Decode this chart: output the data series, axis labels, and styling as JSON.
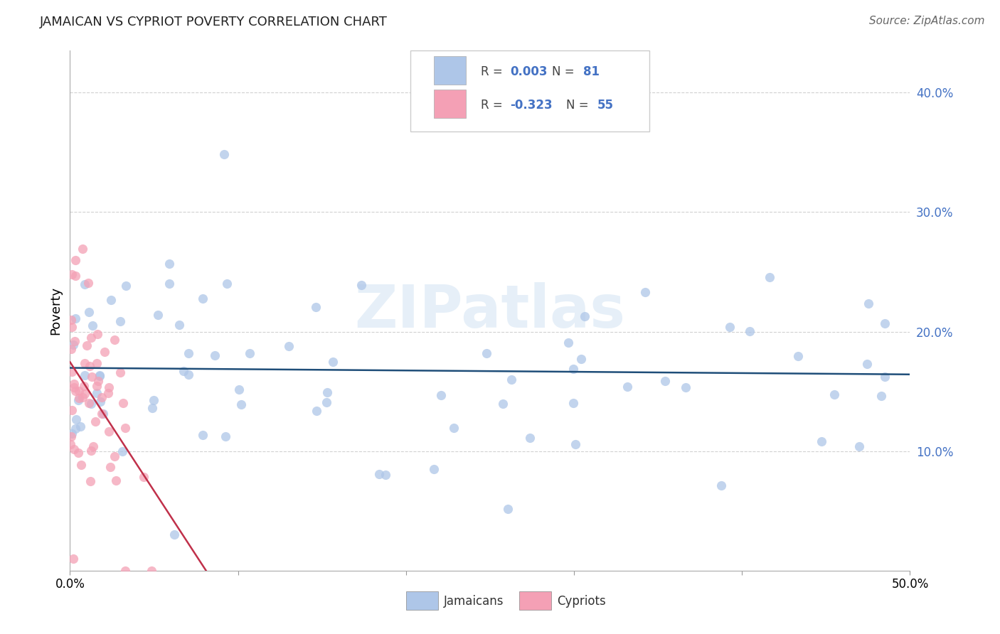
{
  "title": "JAMAICAN VS CYPRIOT POVERTY CORRELATION CHART",
  "source": "Source: ZipAtlas.com",
  "ylabel": "Poverty",
  "xlim": [
    0.0,
    0.5
  ],
  "ylim": [
    0.0,
    0.435
  ],
  "jamaican_R": 0.003,
  "jamaican_N": 81,
  "cypriot_R": -0.323,
  "cypriot_N": 55,
  "jamaican_color": "#aec6e8",
  "cypriot_color": "#f4a0b5",
  "jamaican_line_color": "#1f4e79",
  "cypriot_line_color": "#c0304a",
  "background_color": "#ffffff",
  "grid_color": "#cccccc",
  "watermark_text": "ZIPatlas",
  "title_fontsize": 13,
  "source_fontsize": 11,
  "ytick_color": "#4472c4",
  "seed_jam": 42,
  "seed_cyp": 17
}
